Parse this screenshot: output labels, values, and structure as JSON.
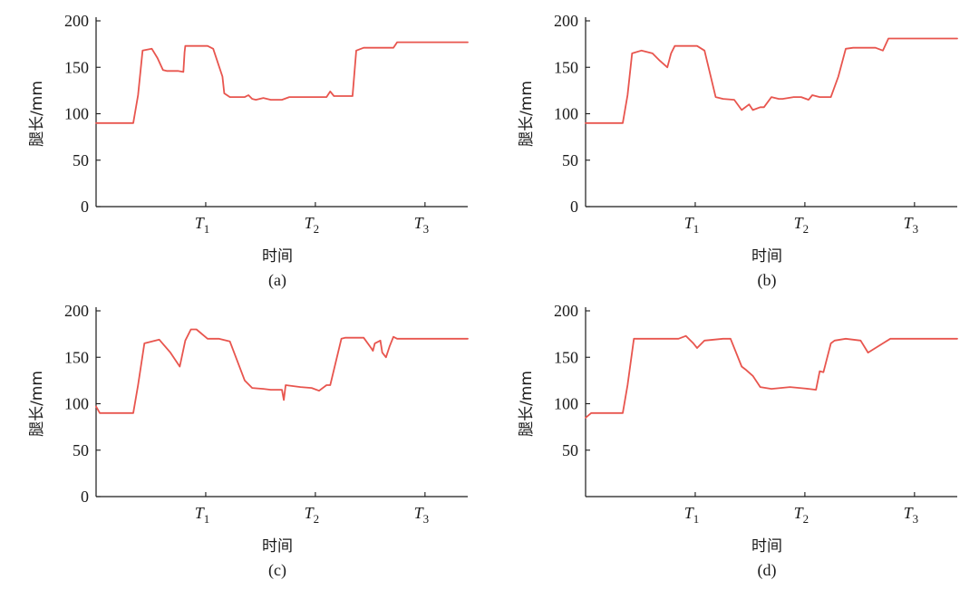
{
  "colors": {
    "line": "#e8554e",
    "axis": "#1a1a1a"
  },
  "chart_data": [
    {
      "type": "line",
      "caption": "(a)",
      "xlabel": "时间",
      "ylabel": "腿长/mm",
      "ylim": [
        0,
        200
      ],
      "yticks": [
        "0",
        "50",
        "100",
        "150",
        "200"
      ],
      "xticks": [
        {
          "x": 0.295,
          "base": "T",
          "sub": "1"
        },
        {
          "x": 0.59,
          "base": "T",
          "sub": "2"
        },
        {
          "x": 0.885,
          "base": "T",
          "sub": "3"
        }
      ],
      "xlim": [
        0,
        1
      ],
      "series": [
        {
          "x": [
            0,
            0.02,
            0.06,
            0.1,
            0.113,
            0.125,
            0.15,
            0.165,
            0.18,
            0.19,
            0.22,
            0.235,
            0.238,
            0.24,
            0.3,
            0.315,
            0.34,
            0.345,
            0.36,
            0.4,
            0.41,
            0.42,
            0.43,
            0.45,
            0.47,
            0.5,
            0.52,
            0.58,
            0.62,
            0.63,
            0.64,
            0.66,
            0.69,
            0.7,
            0.72,
            0.76,
            0.8,
            0.81,
            0.82,
            0.85,
            0.9,
            1.0
          ],
          "y": [
            90,
            90,
            90,
            90,
            120,
            168,
            170,
            160,
            147,
            146,
            146,
            145,
            166,
            173,
            173,
            170,
            140,
            122,
            118,
            118,
            120,
            116,
            115,
            117,
            115,
            115,
            118,
            118,
            118,
            124,
            119,
            119,
            119,
            168,
            171,
            171,
            171,
            177,
            177,
            177,
            177,
            177
          ]
        }
      ]
    },
    {
      "type": "line",
      "caption": "(b)",
      "xlabel": "时间",
      "ylabel": "腿长/mm",
      "ylim": [
        0,
        200
      ],
      "yticks": [
        "0",
        "50",
        "100",
        "150",
        "200"
      ],
      "xticks": [
        {
          "x": 0.295,
          "base": "T",
          "sub": "1"
        },
        {
          "x": 0.59,
          "base": "T",
          "sub": "2"
        },
        {
          "x": 0.885,
          "base": "T",
          "sub": "3"
        }
      ],
      "xlim": [
        0,
        1
      ],
      "series": [
        {
          "x": [
            0,
            0.02,
            0.06,
            0.1,
            0.113,
            0.125,
            0.15,
            0.18,
            0.2,
            0.22,
            0.23,
            0.24,
            0.3,
            0.32,
            0.35,
            0.37,
            0.4,
            0.42,
            0.44,
            0.45,
            0.47,
            0.48,
            0.5,
            0.52,
            0.53,
            0.56,
            0.58,
            0.6,
            0.61,
            0.63,
            0.66,
            0.68,
            0.7,
            0.72,
            0.78,
            0.8,
            0.815,
            0.85,
            1.0
          ],
          "y": [
            90,
            90,
            90,
            90,
            120,
            165,
            168,
            165,
            157,
            150,
            165,
            173,
            173,
            168,
            118,
            116,
            115,
            104,
            110,
            104,
            107,
            107,
            118,
            116,
            116,
            118,
            118,
            115,
            120,
            118,
            118,
            140,
            170,
            171,
            171,
            168,
            181,
            181,
            181
          ]
        }
      ]
    },
    {
      "type": "line",
      "caption": "(c)",
      "xlabel": "时间",
      "ylabel": "腿长/mm",
      "ylim": [
        0,
        200
      ],
      "yticks": [
        "0",
        "50",
        "100",
        "150",
        "200"
      ],
      "xticks": [
        {
          "x": 0.295,
          "base": "T",
          "sub": "1"
        },
        {
          "x": 0.59,
          "base": "T",
          "sub": "2"
        },
        {
          "x": 0.885,
          "base": "T",
          "sub": "3"
        }
      ],
      "xlim": [
        0,
        1
      ],
      "series": [
        {
          "x": [
            0,
            0.01,
            0.03,
            0.1,
            0.113,
            0.13,
            0.17,
            0.2,
            0.225,
            0.24,
            0.255,
            0.27,
            0.3,
            0.33,
            0.36,
            0.4,
            0.42,
            0.45,
            0.47,
            0.5,
            0.505,
            0.51,
            0.55,
            0.58,
            0.6,
            0.62,
            0.63,
            0.66,
            0.67,
            0.72,
            0.74,
            0.745,
            0.75,
            0.765,
            0.77,
            0.78,
            0.79,
            0.8,
            0.81,
            0.85,
            1.0
          ],
          "y": [
            97,
            90,
            90,
            90,
            120,
            165,
            169,
            155,
            140,
            168,
            180,
            180,
            170,
            170,
            167,
            125,
            117,
            116,
            115,
            115,
            104,
            120,
            118,
            117,
            114,
            120,
            120,
            170,
            171,
            171,
            160,
            157,
            165,
            168,
            155,
            150,
            162,
            172,
            170,
            170,
            170
          ]
        }
      ]
    },
    {
      "type": "line",
      "caption": "(d)",
      "xlabel": "时间",
      "ylabel": "腿长/mm",
      "ylim": [
        0,
        200
      ],
      "yticks": [
        "50",
        "100",
        "150",
        "200"
      ],
      "xticks": [
        {
          "x": 0.295,
          "base": "T",
          "sub": "1"
        },
        {
          "x": 0.59,
          "base": "T",
          "sub": "2"
        },
        {
          "x": 0.885,
          "base": "T",
          "sub": "3"
        }
      ],
      "xlim": [
        0,
        1
      ],
      "series": [
        {
          "x": [
            0,
            0.015,
            0.03,
            0.1,
            0.113,
            0.13,
            0.2,
            0.25,
            0.27,
            0.29,
            0.3,
            0.32,
            0.37,
            0.39,
            0.42,
            0.43,
            0.45,
            0.47,
            0.5,
            0.55,
            0.6,
            0.62,
            0.63,
            0.64,
            0.66,
            0.67,
            0.7,
            0.74,
            0.76,
            0.78,
            0.8,
            0.82,
            1.0
          ],
          "y": [
            85,
            90,
            90,
            90,
            120,
            170,
            170,
            170,
            173,
            165,
            160,
            168,
            170,
            170,
            140,
            137,
            130,
            118,
            116,
            118,
            116,
            115,
            135,
            134,
            165,
            168,
            170,
            168,
            155,
            160,
            165,
            170,
            170
          ]
        }
      ]
    }
  ]
}
